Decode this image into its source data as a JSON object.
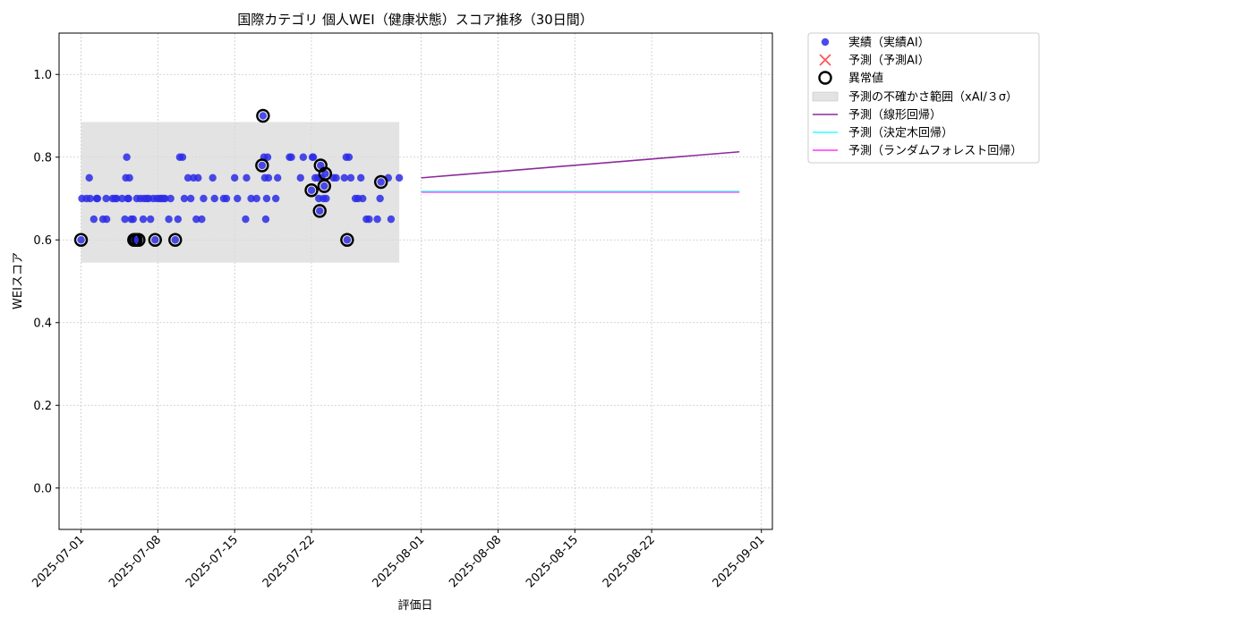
{
  "chart_data": {
    "type": "scatter",
    "title": "国際カテゴリ 個人WEI（健康状態）スコア推移（30日間）",
    "xlabel": "評価日",
    "ylabel": "WEIスコア",
    "xlim": [
      "2025-06-29",
      "2025-09-02"
    ],
    "ylim": [
      -0.1,
      1.1
    ],
    "y_ticks": [
      0.0,
      0.2,
      0.4,
      0.6,
      0.8,
      1.0
    ],
    "x_ticks": [
      "2025-07-01",
      "2025-07-08",
      "2025-07-15",
      "2025-07-22",
      "2025-08-01",
      "2025-08-08",
      "2025-08-15",
      "2025-08-22",
      "2025-09-01"
    ],
    "grid": true,
    "legend_position": "outside-top-right",
    "colors": {
      "actual": "#2b2be6",
      "predicted": "#ff3333",
      "anomaly": "#000000",
      "band": "#d9d9d9",
      "linear": "#8b2a9a",
      "tree": "#33ffff",
      "forest": "#ff33ff"
    },
    "legend": [
      {
        "key": "actual",
        "label": "実績（実績AI）"
      },
      {
        "key": "predicted",
        "label": "予測（予測AI）"
      },
      {
        "key": "anomaly",
        "label": "異常値"
      },
      {
        "key": "band",
        "label": "予測の不確かさ範囲（xAI/３σ）"
      },
      {
        "key": "linear",
        "label": "予測（線形回帰）"
      },
      {
        "key": "tree",
        "label": "予測（決定木回帰）"
      },
      {
        "key": "forest",
        "label": "予測（ランダムフォレスト回帰）"
      }
    ],
    "uncertainty_band": {
      "x": [
        "2025-07-01",
        "2025-07-30"
      ],
      "y": [
        0.545,
        0.885
      ]
    },
    "actual": [
      {
        "x": "2025-07-01T00:00",
        "y": 0.6
      },
      {
        "x": "2025-07-01T02:00",
        "y": 0.7
      },
      {
        "x": "2025-07-01T12:00",
        "y": 0.7
      },
      {
        "x": "2025-07-01T18:00",
        "y": 0.75
      },
      {
        "x": "2025-07-01T20:00",
        "y": 0.7
      },
      {
        "x": "2025-07-02T04:00",
        "y": 0.65
      },
      {
        "x": "2025-07-02T10:00",
        "y": 0.7
      },
      {
        "x": "2025-07-02T12:00",
        "y": 0.7
      },
      {
        "x": "2025-07-03T00:00",
        "y": 0.65
      },
      {
        "x": "2025-07-03T07:00",
        "y": 0.7
      },
      {
        "x": "2025-07-03T08:00",
        "y": 0.65
      },
      {
        "x": "2025-07-03T21:00",
        "y": 0.7
      },
      {
        "x": "2025-07-04T02:00",
        "y": 0.7
      },
      {
        "x": "2025-07-04T06:00",
        "y": 0.7
      },
      {
        "x": "2025-07-04T18:00",
        "y": 0.7
      },
      {
        "x": "2025-07-05T00:00",
        "y": 0.65
      },
      {
        "x": "2025-07-05T02:00",
        "y": 0.75
      },
      {
        "x": "2025-07-05T04:00",
        "y": 0.8
      },
      {
        "x": "2025-07-05T06:00",
        "y": 0.7
      },
      {
        "x": "2025-07-05T08:00",
        "y": 0.7
      },
      {
        "x": "2025-07-05T10:00",
        "y": 0.75
      },
      {
        "x": "2025-07-05T14:00",
        "y": 0.65
      },
      {
        "x": "2025-07-05T18:00",
        "y": 0.65
      },
      {
        "x": "2025-07-05T20:00",
        "y": 0.6
      },
      {
        "x": "2025-07-06T00:00",
        "y": 0.6
      },
      {
        "x": "2025-07-06T02:00",
        "y": 0.7
      },
      {
        "x": "2025-07-06T06:00",
        "y": 0.6
      },
      {
        "x": "2025-07-06T10:00",
        "y": 0.7
      },
      {
        "x": "2025-07-06T16:00",
        "y": 0.65
      },
      {
        "x": "2025-07-06T18:00",
        "y": 0.7
      },
      {
        "x": "2025-07-07T00:00",
        "y": 0.7
      },
      {
        "x": "2025-07-07T04:00",
        "y": 0.7
      },
      {
        "x": "2025-07-07T08:00",
        "y": 0.65
      },
      {
        "x": "2025-07-07T14:00",
        "y": 0.7
      },
      {
        "x": "2025-07-07T18:00",
        "y": 0.6
      },
      {
        "x": "2025-07-07T22:00",
        "y": 0.7
      },
      {
        "x": "2025-07-08T04:00",
        "y": 0.7
      },
      {
        "x": "2025-07-08T08:00",
        "y": 0.7
      },
      {
        "x": "2025-07-08T12:00",
        "y": 0.7
      },
      {
        "x": "2025-07-08T16:00",
        "y": 0.7
      },
      {
        "x": "2025-07-09T00:00",
        "y": 0.65
      },
      {
        "x": "2025-07-09T04:00",
        "y": 0.7
      },
      {
        "x": "2025-07-09T14:00",
        "y": 0.6
      },
      {
        "x": "2025-07-09T20:00",
        "y": 0.65
      },
      {
        "x": "2025-07-10T00:00",
        "y": 0.8
      },
      {
        "x": "2025-07-10T06:00",
        "y": 0.8
      },
      {
        "x": "2025-07-10T10:00",
        "y": 0.7
      },
      {
        "x": "2025-07-10T18:00",
        "y": 0.75
      },
      {
        "x": "2025-07-11T00:00",
        "y": 0.7
      },
      {
        "x": "2025-07-11T06:00",
        "y": 0.75
      },
      {
        "x": "2025-07-11T12:00",
        "y": 0.65
      },
      {
        "x": "2025-07-11T16:00",
        "y": 0.75
      },
      {
        "x": "2025-07-12T00:00",
        "y": 0.65
      },
      {
        "x": "2025-07-12T04:00",
        "y": 0.7
      },
      {
        "x": "2025-07-13T00:00",
        "y": 0.75
      },
      {
        "x": "2025-07-13T04:00",
        "y": 0.7
      },
      {
        "x": "2025-07-14T00:00",
        "y": 0.7
      },
      {
        "x": "2025-07-14T06:00",
        "y": 0.7
      },
      {
        "x": "2025-07-15T00:00",
        "y": 0.75
      },
      {
        "x": "2025-07-15T06:00",
        "y": 0.7
      },
      {
        "x": "2025-07-16T00:00",
        "y": 0.65
      },
      {
        "x": "2025-07-16T02:00",
        "y": 0.75
      },
      {
        "x": "2025-07-16T12:00",
        "y": 0.7
      },
      {
        "x": "2025-07-17T00:00",
        "y": 0.7
      },
      {
        "x": "2025-07-17T12:00",
        "y": 0.78
      },
      {
        "x": "2025-07-17T14:00",
        "y": 0.9
      },
      {
        "x": "2025-07-17T16:00",
        "y": 0.8
      },
      {
        "x": "2025-07-17T18:00",
        "y": 0.75
      },
      {
        "x": "2025-07-17T20:00",
        "y": 0.65
      },
      {
        "x": "2025-07-17T22:00",
        "y": 0.7
      },
      {
        "x": "2025-07-18T00:00",
        "y": 0.8
      },
      {
        "x": "2025-07-18T02:00",
        "y": 0.75
      },
      {
        "x": "2025-07-18T18:00",
        "y": 0.7
      },
      {
        "x": "2025-07-18T22:00",
        "y": 0.75
      },
      {
        "x": "2025-07-20T00:00",
        "y": 0.8
      },
      {
        "x": "2025-07-20T04:00",
        "y": 0.8
      },
      {
        "x": "2025-07-21T00:00",
        "y": 0.75
      },
      {
        "x": "2025-07-21T06:00",
        "y": 0.8
      },
      {
        "x": "2025-07-22T00:00",
        "y": 0.72
      },
      {
        "x": "2025-07-22T02:00",
        "y": 0.8
      },
      {
        "x": "2025-07-22T04:00",
        "y": 0.8
      },
      {
        "x": "2025-07-22T08:00",
        "y": 0.75
      },
      {
        "x": "2025-07-22T14:00",
        "y": 0.75
      },
      {
        "x": "2025-07-22T16:00",
        "y": 0.7
      },
      {
        "x": "2025-07-22T18:00",
        "y": 0.67
      },
      {
        "x": "2025-07-22T20:00",
        "y": 0.78
      },
      {
        "x": "2025-07-22T22:00",
        "y": 0.75
      },
      {
        "x": "2025-07-23T02:00",
        "y": 0.7
      },
      {
        "x": "2025-07-23T04:00",
        "y": 0.73
      },
      {
        "x": "2025-07-23T06:00",
        "y": 0.76
      },
      {
        "x": "2025-07-23T08:00",
        "y": 0.7
      },
      {
        "x": "2025-07-24T00:00",
        "y": 0.75
      },
      {
        "x": "2025-07-24T06:00",
        "y": 0.75
      },
      {
        "x": "2025-07-25T00:00",
        "y": 0.75
      },
      {
        "x": "2025-07-25T04:00",
        "y": 0.8
      },
      {
        "x": "2025-07-25T06:00",
        "y": 0.6
      },
      {
        "x": "2025-07-25T10:00",
        "y": 0.8
      },
      {
        "x": "2025-07-25T14:00",
        "y": 0.75
      },
      {
        "x": "2025-07-26T00:00",
        "y": 0.7
      },
      {
        "x": "2025-07-26T06:00",
        "y": 0.7
      },
      {
        "x": "2025-07-26T12:00",
        "y": 0.75
      },
      {
        "x": "2025-07-26T16:00",
        "y": 0.7
      },
      {
        "x": "2025-07-27T00:00",
        "y": 0.65
      },
      {
        "x": "2025-07-27T06:00",
        "y": 0.65
      },
      {
        "x": "2025-07-28T00:00",
        "y": 0.65
      },
      {
        "x": "2025-07-28T06:00",
        "y": 0.7
      },
      {
        "x": "2025-07-28T08:00",
        "y": 0.74
      },
      {
        "x": "2025-07-29T00:00",
        "y": 0.75
      },
      {
        "x": "2025-07-29T06:00",
        "y": 0.65
      },
      {
        "x": "2025-07-30T00:00",
        "y": 0.75
      }
    ],
    "anomalies": [
      {
        "x": "2025-07-01T00:00",
        "y": 0.6
      },
      {
        "x": "2025-07-05T20:00",
        "y": 0.6
      },
      {
        "x": "2025-07-06T00:00",
        "y": 0.6
      },
      {
        "x": "2025-07-06T06:00",
        "y": 0.6
      },
      {
        "x": "2025-07-07T18:00",
        "y": 0.6
      },
      {
        "x": "2025-07-09T14:00",
        "y": 0.6
      },
      {
        "x": "2025-07-17T12:00",
        "y": 0.78
      },
      {
        "x": "2025-07-17T14:00",
        "y": 0.9
      },
      {
        "x": "2025-07-22T00:00",
        "y": 0.72
      },
      {
        "x": "2025-07-22T18:00",
        "y": 0.67
      },
      {
        "x": "2025-07-22T20:00",
        "y": 0.78
      },
      {
        "x": "2025-07-23T04:00",
        "y": 0.73
      },
      {
        "x": "2025-07-23T06:00",
        "y": 0.76
      },
      {
        "x": "2025-07-25T06:00",
        "y": 0.6
      },
      {
        "x": "2025-07-28T08:00",
        "y": 0.74
      }
    ],
    "series": [
      {
        "key": "linear",
        "name": "予測（線形回帰）",
        "x": [
          "2025-08-01",
          "2025-08-30"
        ],
        "y": [
          0.75,
          0.813
        ]
      },
      {
        "key": "tree",
        "name": "予測（決定木回帰）",
        "x": [
          "2025-08-01",
          "2025-08-30"
        ],
        "y": [
          0.717,
          0.717
        ]
      },
      {
        "key": "forest",
        "name": "予測（ランダムフォレスト回帰）",
        "x": [
          "2025-08-01",
          "2025-08-30"
        ],
        "y": [
          0.715,
          0.715
        ]
      }
    ]
  }
}
